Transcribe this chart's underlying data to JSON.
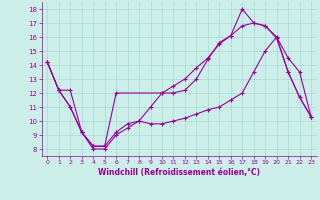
{
  "xlabel": "Windchill (Refroidissement éolien,°C)",
  "background_color": "#cceee8",
  "grid_color": "#aad8d4",
  "line_color": "#990099",
  "xlim": [
    -0.5,
    23.5
  ],
  "ylim": [
    7.5,
    18.5
  ],
  "yticks": [
    8,
    9,
    10,
    11,
    12,
    13,
    14,
    15,
    16,
    17,
    18
  ],
  "xticks": [
    0,
    1,
    2,
    3,
    4,
    5,
    6,
    7,
    8,
    9,
    10,
    11,
    12,
    13,
    14,
    15,
    16,
    17,
    18,
    19,
    20,
    21,
    22,
    23
  ],
  "series": [
    {
      "x": [
        0,
        1,
        2,
        3,
        4,
        5,
        6,
        10,
        11,
        12,
        13,
        14,
        15,
        16,
        17,
        18,
        19,
        20,
        21,
        22,
        23
      ],
      "y": [
        14.2,
        12.2,
        12.2,
        9.2,
        8.2,
        8.2,
        12.0,
        12.0,
        12.0,
        12.2,
        13.0,
        14.4,
        15.6,
        16.1,
        18.0,
        17.0,
        16.8,
        16.0,
        13.5,
        11.7,
        10.3
      ]
    },
    {
      "x": [
        0,
        1,
        2,
        3,
        4,
        5,
        6,
        7,
        8,
        9,
        10,
        11,
        12,
        13,
        14,
        15,
        16,
        17,
        18,
        19,
        20,
        21,
        22,
        23
      ],
      "y": [
        14.2,
        12.2,
        11.0,
        9.2,
        8.2,
        8.2,
        9.2,
        9.8,
        10.0,
        11.0,
        12.0,
        12.5,
        13.0,
        13.8,
        14.5,
        15.5,
        16.1,
        16.8,
        17.0,
        16.8,
        15.9,
        13.5,
        11.7,
        10.3
      ]
    },
    {
      "x": [
        0,
        1,
        2,
        3,
        4,
        5,
        6,
        7,
        8,
        9,
        10,
        11,
        12,
        13,
        14,
        15,
        16,
        17,
        18,
        19,
        20,
        21,
        22,
        23
      ],
      "y": [
        14.2,
        12.2,
        11.0,
        9.2,
        8.0,
        8.0,
        9.0,
        9.5,
        10.0,
        9.8,
        9.8,
        10.0,
        10.2,
        10.5,
        10.8,
        11.0,
        11.5,
        12.0,
        13.5,
        15.0,
        16.0,
        14.5,
        13.5,
        10.3
      ]
    }
  ]
}
